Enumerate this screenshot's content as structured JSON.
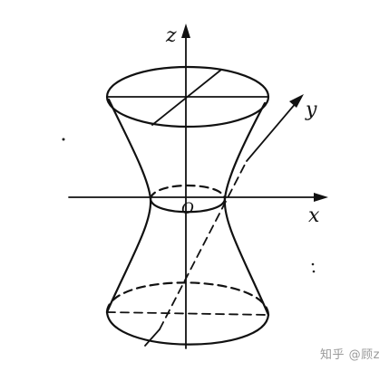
{
  "axes": {
    "x": "x",
    "y": "y",
    "z": "z",
    "origin": "O"
  },
  "watermark": "知乎 @顾z",
  "colors": {
    "ink": "#111111",
    "watermark": "#9a9a9a",
    "background": "#ffffff"
  }
}
